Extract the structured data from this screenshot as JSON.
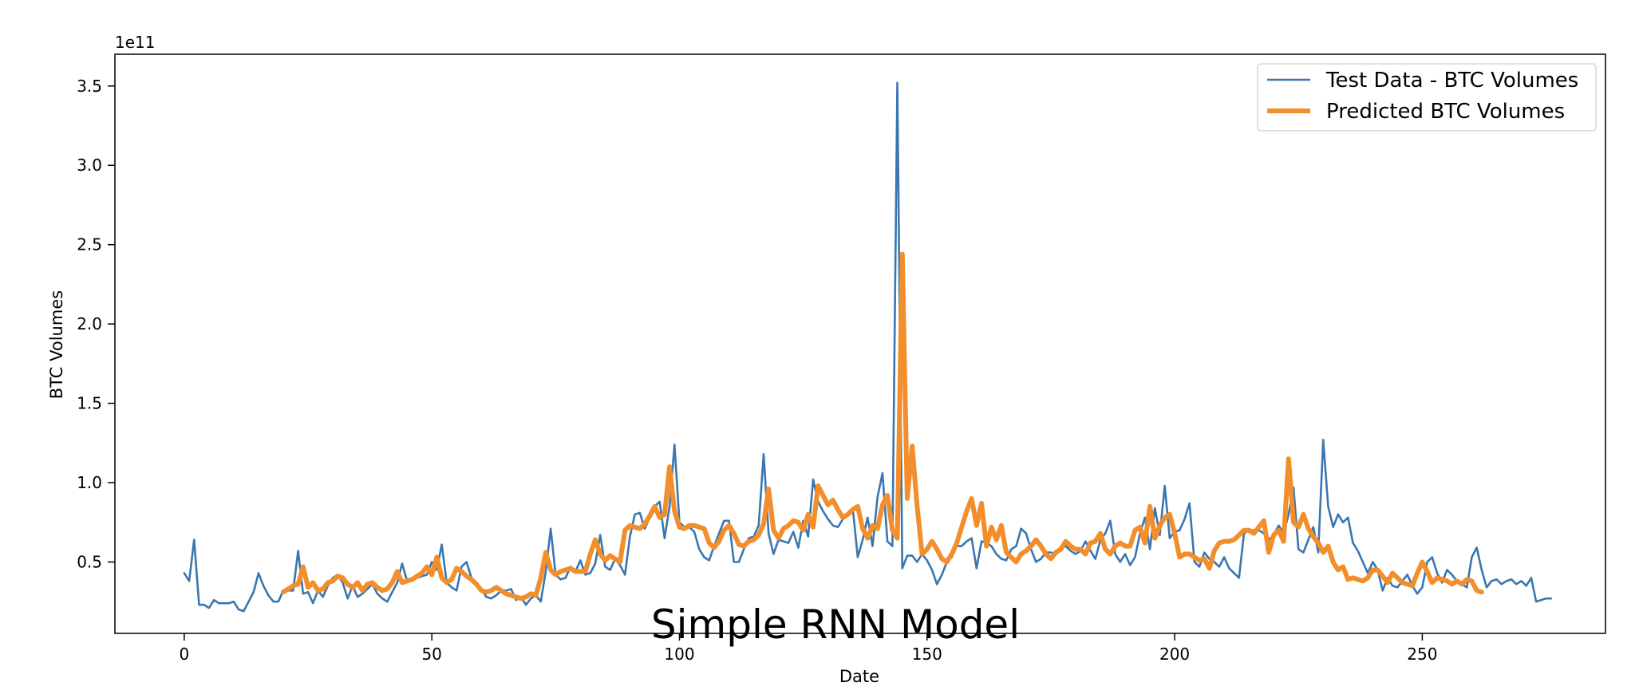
{
  "chart_data": {
    "type": "line",
    "title": "Simple RNN Model",
    "xlabel": "Date",
    "ylabel": "BTC Volumes",
    "y_offset_label": "1e11",
    "xlim": [
      -14,
      287
    ],
    "ylim": [
      0.05,
      3.7
    ],
    "x_ticks": [
      0,
      50,
      100,
      150,
      200,
      250
    ],
    "x_tick_labels": [
      "0",
      "50",
      "100",
      "150",
      "200",
      "250"
    ],
    "y_ticks": [
      0.5,
      1.0,
      1.5,
      2.0,
      2.5,
      3.0,
      3.5
    ],
    "y_tick_labels": [
      "0.5",
      "1.0",
      "1.5",
      "2.0",
      "2.5",
      "3.0",
      "3.5"
    ],
    "grid": false,
    "legend_position": "top-right",
    "series": [
      {
        "name": "Test Data - BTC Volumes",
        "color": "#3A76AF",
        "x_start": 0,
        "values": [
          0.43,
          0.38,
          0.64,
          0.23,
          0.23,
          0.21,
          0.26,
          0.24,
          0.24,
          0.24,
          0.25,
          0.2,
          0.19,
          0.25,
          0.31,
          0.43,
          0.35,
          0.29,
          0.25,
          0.25,
          0.32,
          0.32,
          0.32,
          0.57,
          0.3,
          0.31,
          0.24,
          0.32,
          0.28,
          0.35,
          0.4,
          0.42,
          0.37,
          0.27,
          0.35,
          0.28,
          0.3,
          0.33,
          0.36,
          0.3,
          0.27,
          0.25,
          0.31,
          0.37,
          0.49,
          0.38,
          0.38,
          0.4,
          0.41,
          0.42,
          0.5,
          0.45,
          0.61,
          0.37,
          0.34,
          0.32,
          0.47,
          0.5,
          0.4,
          0.35,
          0.33,
          0.28,
          0.27,
          0.29,
          0.32,
          0.32,
          0.33,
          0.26,
          0.28,
          0.23,
          0.27,
          0.29,
          0.25,
          0.44,
          0.71,
          0.42,
          0.39,
          0.4,
          0.47,
          0.44,
          0.51,
          0.42,
          0.43,
          0.49,
          0.67,
          0.47,
          0.45,
          0.52,
          0.48,
          0.42,
          0.66,
          0.8,
          0.81,
          0.71,
          0.78,
          0.85,
          0.88,
          0.65,
          0.85,
          1.24,
          0.75,
          0.72,
          0.72,
          0.69,
          0.58,
          0.53,
          0.51,
          0.6,
          0.68,
          0.76,
          0.76,
          0.5,
          0.5,
          0.58,
          0.65,
          0.66,
          0.73,
          1.18,
          0.68,
          0.55,
          0.64,
          0.63,
          0.62,
          0.69,
          0.59,
          0.76,
          0.66,
          1.02,
          0.88,
          0.82,
          0.77,
          0.73,
          0.72,
          0.77,
          0.79,
          0.84,
          0.53,
          0.64,
          0.78,
          0.6,
          0.91,
          1.06,
          0.63,
          0.6,
          3.52,
          0.46,
          0.54,
          0.54,
          0.5,
          0.55,
          0.51,
          0.45,
          0.36,
          0.42,
          0.5,
          0.53,
          0.6,
          0.6,
          0.63,
          0.65,
          0.46,
          0.63,
          0.62,
          0.6,
          0.55,
          0.52,
          0.51,
          0.58,
          0.6,
          0.71,
          0.68,
          0.58,
          0.5,
          0.52,
          0.56,
          0.56,
          0.55,
          0.59,
          0.6,
          0.57,
          0.55,
          0.57,
          0.63,
          0.57,
          0.52,
          0.64,
          0.68,
          0.76,
          0.55,
          0.5,
          0.55,
          0.48,
          0.53,
          0.68,
          0.78,
          0.58,
          0.84,
          0.67,
          0.98,
          0.65,
          0.69,
          0.7,
          0.77,
          0.87,
          0.5,
          0.47,
          0.56,
          0.52,
          0.5,
          0.47,
          0.53,
          0.46,
          0.43,
          0.4,
          0.68,
          0.7,
          0.7,
          0.7,
          0.68,
          0.64,
          0.67,
          0.73,
          0.68,
          0.8,
          0.97,
          0.58,
          0.56,
          0.64,
          0.72,
          0.56,
          1.27,
          0.85,
          0.72,
          0.8,
          0.75,
          0.78,
          0.62,
          0.57,
          0.5,
          0.43,
          0.5,
          0.45,
          0.32,
          0.4,
          0.35,
          0.34,
          0.38,
          0.42,
          0.35,
          0.3,
          0.34,
          0.5,
          0.53,
          0.43,
          0.37,
          0.45,
          0.42,
          0.38,
          0.36,
          0.34,
          0.53,
          0.59,
          0.45,
          0.34,
          0.38,
          0.39,
          0.36,
          0.38,
          0.39,
          0.36,
          0.38,
          0.35,
          0.4,
          0.25,
          0.26,
          0.27,
          0.27
        ]
      },
      {
        "name": "Predicted BTC Volumes",
        "color": "#F28E2B",
        "x_start": 20,
        "values": [
          0.31,
          0.33,
          0.35,
          0.36,
          0.47,
          0.34,
          0.37,
          0.32,
          0.33,
          0.37,
          0.38,
          0.41,
          0.4,
          0.36,
          0.34,
          0.37,
          0.32,
          0.36,
          0.37,
          0.34,
          0.32,
          0.33,
          0.37,
          0.44,
          0.37,
          0.38,
          0.39,
          0.41,
          0.43,
          0.47,
          0.42,
          0.53,
          0.4,
          0.37,
          0.39,
          0.46,
          0.44,
          0.41,
          0.39,
          0.36,
          0.32,
          0.31,
          0.32,
          0.34,
          0.32,
          0.3,
          0.29,
          0.28,
          0.27,
          0.28,
          0.3,
          0.29,
          0.4,
          0.56,
          0.45,
          0.42,
          0.44,
          0.45,
          0.46,
          0.44,
          0.44,
          0.44,
          0.55,
          0.64,
          0.55,
          0.51,
          0.54,
          0.52,
          0.5,
          0.7,
          0.73,
          0.72,
          0.71,
          0.74,
          0.79,
          0.85,
          0.78,
          0.8,
          1.1,
          0.82,
          0.72,
          0.71,
          0.73,
          0.73,
          0.72,
          0.71,
          0.62,
          0.59,
          0.63,
          0.7,
          0.73,
          0.68,
          0.61,
          0.6,
          0.63,
          0.64,
          0.67,
          0.74,
          0.96,
          0.7,
          0.65,
          0.71,
          0.73,
          0.76,
          0.75,
          0.7,
          0.8,
          0.72,
          0.98,
          0.92,
          0.86,
          0.89,
          0.83,
          0.78,
          0.8,
          0.83,
          0.85,
          0.71,
          0.65,
          0.73,
          0.71,
          0.86,
          0.92,
          0.7,
          0.65,
          2.44,
          0.9,
          1.23,
          0.85,
          0.55,
          0.58,
          0.63,
          0.58,
          0.52,
          0.5,
          0.55,
          0.62,
          0.72,
          0.82,
          0.9,
          0.73,
          0.87,
          0.6,
          0.72,
          0.64,
          0.73,
          0.56,
          0.53,
          0.5,
          0.55,
          0.57,
          0.6,
          0.64,
          0.6,
          0.55,
          0.52,
          0.56,
          0.58,
          0.63,
          0.6,
          0.58,
          0.58,
          0.55,
          0.62,
          0.63,
          0.68,
          0.58,
          0.55,
          0.6,
          0.62,
          0.6,
          0.6,
          0.7,
          0.72,
          0.62,
          0.85,
          0.65,
          0.73,
          0.78,
          0.8,
          0.68,
          0.53,
          0.55,
          0.55,
          0.53,
          0.51,
          0.52,
          0.46,
          0.57,
          0.62,
          0.63,
          0.63,
          0.64,
          0.67,
          0.7,
          0.7,
          0.68,
          0.72,
          0.76,
          0.56,
          0.67,
          0.7,
          0.63,
          1.15,
          0.75,
          0.72,
          0.8,
          0.71,
          0.66,
          0.62,
          0.56,
          0.6,
          0.5,
          0.45,
          0.47,
          0.39,
          0.4,
          0.39,
          0.38,
          0.4,
          0.45,
          0.45,
          0.41,
          0.37,
          0.43,
          0.4,
          0.37,
          0.36,
          0.35,
          0.43,
          0.5,
          0.44,
          0.37,
          0.4,
          0.39,
          0.38,
          0.36,
          0.38,
          0.36,
          0.39,
          0.38,
          0.32,
          0.31
        ]
      }
    ]
  }
}
